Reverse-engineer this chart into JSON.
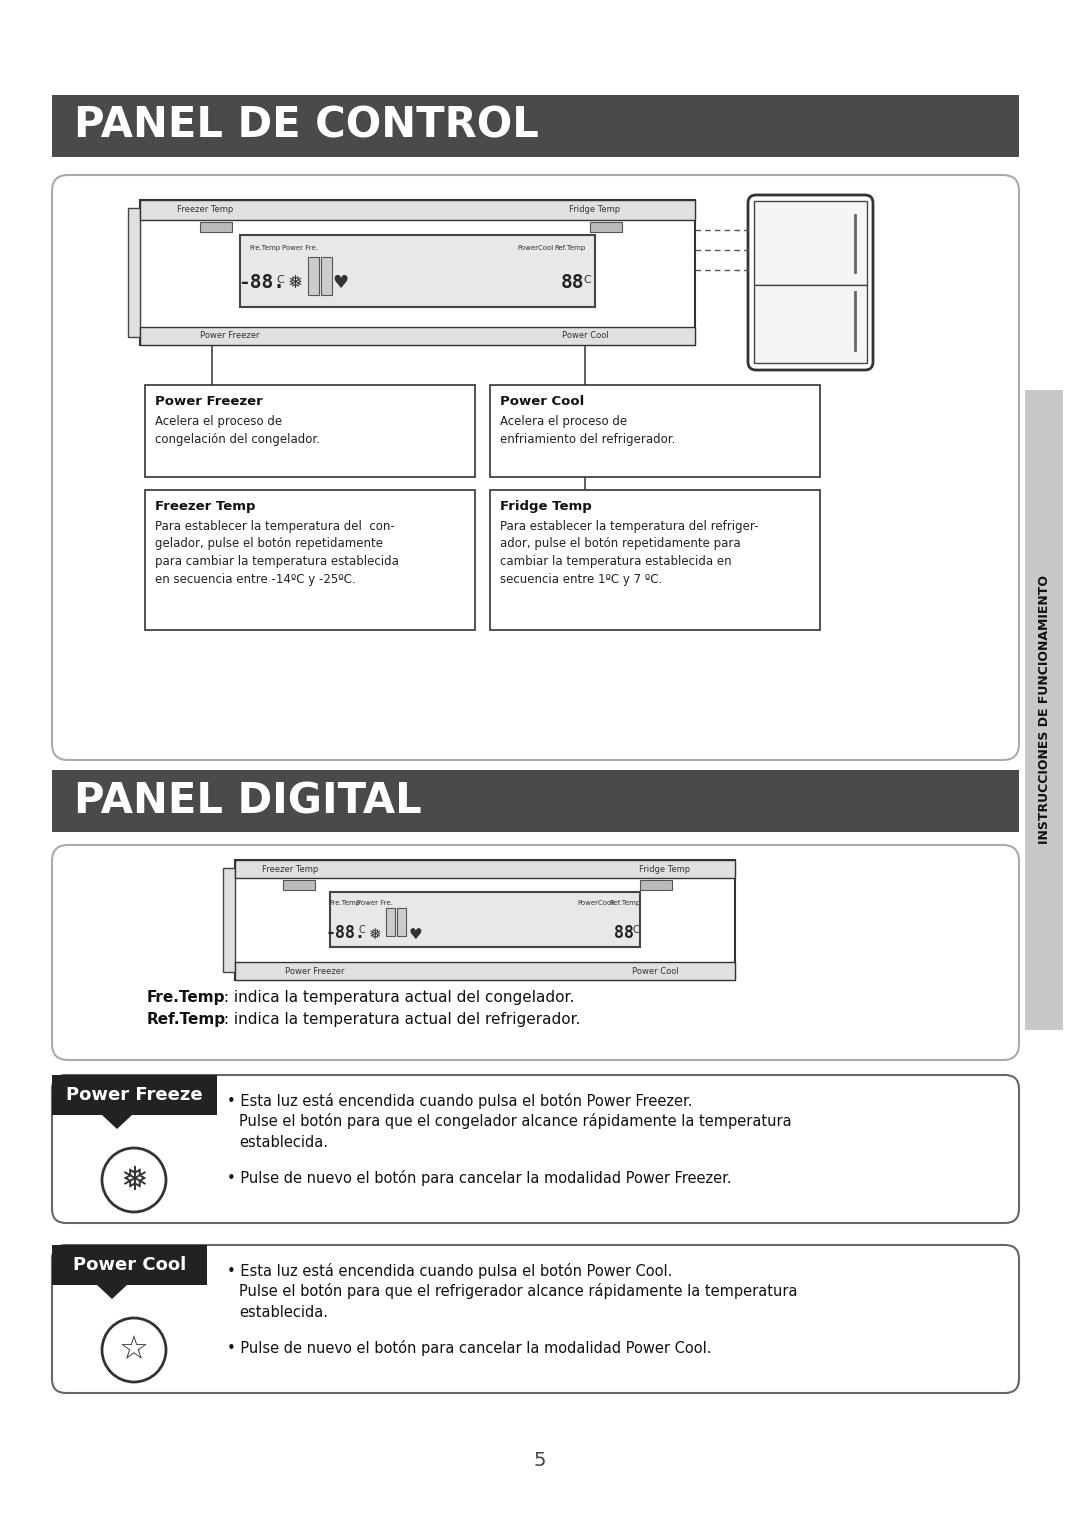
{
  "bg_color": "#ffffff",
  "header1_text": "PANEL DE CONTROL",
  "header2_text": "PANEL DIGITAL",
  "header_bg": "#4a4a4a",
  "header_text_color": "#ffffff",
  "sidebar_text": "INSTRUCCIONES DE FUNCIONAMIENTO",
  "sidebar_bg": "#c8c8c8",
  "cell_titles": [
    "Power Freezer",
    "Power Cool",
    "Freezer Temp",
    "Fridge Temp"
  ],
  "cell_bodies": [
    "Acelera el proceso de\ncongelación del congelador.",
    "Acelera el proceso de\nenfriamiento del refrigerador.",
    "Para establecer la temperatura del  con-\ngelador, pulse el botón repetidamente\npara cambiar la temperatura establecida\nen secuencia entre -14ºC y -25ºC.",
    "Para establecer la temperatura del refriger-\nador, pulse el botón repetidamente para\ncambiar la temperatura establecida en\nsecuencia entre 1ºC y 7 ºC."
  ],
  "digital_caption1_bold": "Fre.Temp",
  "digital_caption1_rest": " : indica la temperatura actual del congelador.",
  "digital_caption2_bold": "Ref.Temp",
  "digital_caption2_rest": " : indica la temperatura actual del refrigerador.",
  "pf_title": "Power Freeze",
  "pf_bullet1a": "Esta luz está encendida cuando pulsa el botón Power Freezer.",
  "pf_bullet1b": "Pulse el botón para que el congelador alcance rápidamente la temperatura\nestablecida.",
  "pf_bullet2": "Pulse de nuevo el botón para cancelar la modalidad Power Freezer.",
  "pc_title": "Power Cool",
  "pc_bullet1a": "Esta luz está encendida cuando pulsa el botón Power Cool.",
  "pc_bullet1b": "Pulse el botón para que el refrigerador alcance rápidamente la temperatura\nestablecida.",
  "pc_bullet2": "Pulse de nuevo el botón para cancelar la modalidad Power Cool.",
  "page_number": "5"
}
